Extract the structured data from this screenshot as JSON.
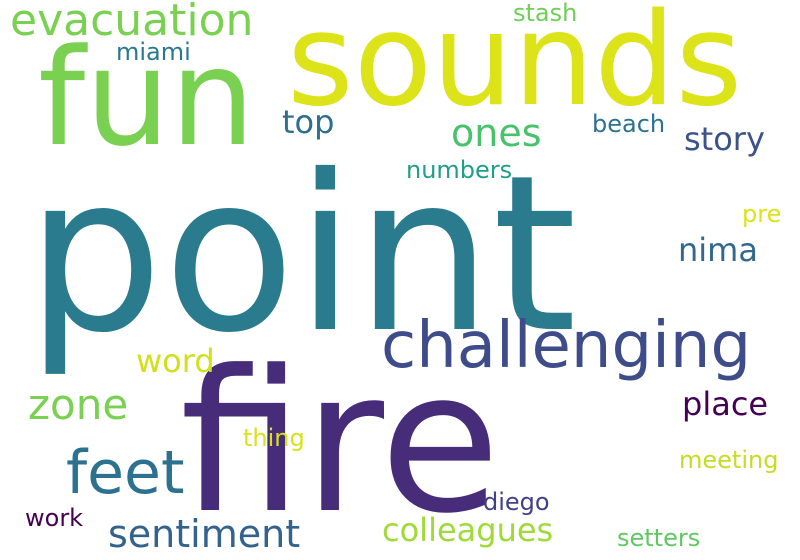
{
  "words": [
    {
      "text": "point",
      "color": "#2a7b8e"
    },
    {
      "text": "fire",
      "color": "#472c7a"
    },
    {
      "text": "sounds",
      "color": "#dce319"
    },
    {
      "text": "fun",
      "color": "#7ad151"
    },
    {
      "text": "challenging",
      "color": "#3e4c8a"
    },
    {
      "text": "evacuation",
      "color": "#7ad151"
    },
    {
      "text": "feet",
      "color": "#2c728e"
    },
    {
      "text": "sentiment",
      "color": "#33638d"
    },
    {
      "text": "ones",
      "color": "#4ac16d"
    },
    {
      "text": "zone",
      "color": "#7ad151"
    },
    {
      "text": "colleagues",
      "color": "#a0da39"
    },
    {
      "text": "place",
      "color": "#440154"
    },
    {
      "text": "story",
      "color": "#3b528b"
    },
    {
      "text": "nima",
      "color": "#31688e"
    },
    {
      "text": "top",
      "color": "#2e6e8e"
    },
    {
      "text": "word",
      "color": "#d0e11c"
    },
    {
      "text": "beach",
      "color": "#2c718e"
    },
    {
      "text": "numbers",
      "color": "#1f9e89"
    },
    {
      "text": "miami",
      "color": "#2a788e"
    },
    {
      "text": "stash",
      "color": "#6ece58"
    },
    {
      "text": "thing",
      "color": "#d8e219"
    },
    {
      "text": "meeting",
      "color": "#c0df25"
    },
    {
      "text": "diego",
      "color": "#424086"
    },
    {
      "text": "work",
      "color": "#440154"
    },
    {
      "text": "setters",
      "color": "#5ec962"
    },
    {
      "text": "pre",
      "color": "#dce319"
    }
  ]
}
